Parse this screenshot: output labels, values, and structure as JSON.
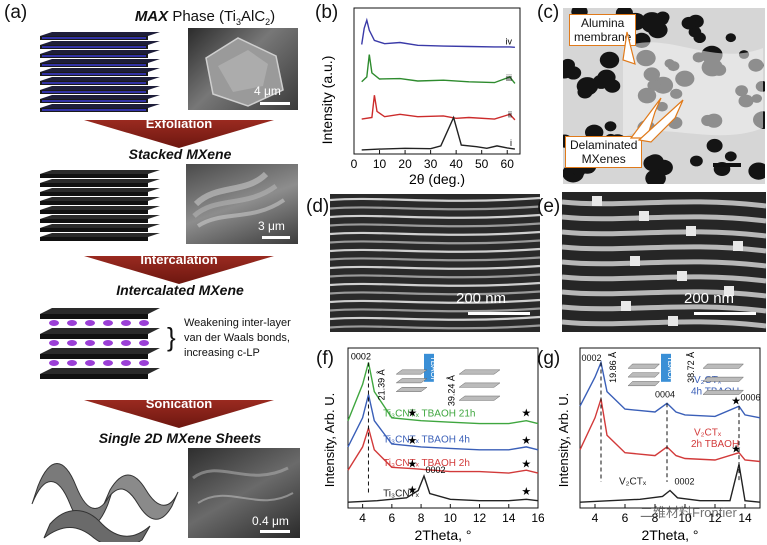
{
  "panels": {
    "a": {
      "label": "(a)",
      "max_title_bold": "MAX",
      "max_title_rest": " Phase (Ti",
      "max_title_sub3": "3",
      "max_title_alc": "AlC",
      "max_title_sub2": "2",
      "max_title_close": ")",
      "scale_max": "4 μm",
      "step1": "Exfoliation",
      "stacked_title": "Stacked MXene",
      "scale_stacked": "3 μm",
      "step2": "Intercalation",
      "intercalated_title": "Intercalated MXene",
      "note_line1": "Weakening inter-layer",
      "note_line2": "van der Waals bonds,",
      "note_line3": "increasing c-LP",
      "step3": "Sonication",
      "single_title": "Single 2D MXene Sheets",
      "scale_single": "0.4 μm"
    },
    "b": {
      "label": "(b)",
      "ylabel": "Intensity (a.u.)",
      "xlabel": "2θ (deg.)",
      "traces": [
        "iv",
        "iii",
        "ii",
        "i"
      ],
      "colors": [
        "#3a3aa8",
        "#2e8b2e",
        "#cc2b2b",
        "#222222"
      ]
    },
    "c": {
      "label": "(c)",
      "callout1_line1": "Alumina",
      "callout1_line2": "membrane",
      "callout2_line1": "Delaminated",
      "callout2_line2": "MXenes"
    },
    "d": {
      "label": "(d)",
      "scale": "200 nm"
    },
    "e": {
      "label": "(e)",
      "scale": "200 nm"
    },
    "f": {
      "label": "(f)",
      "ylabel": "Intensity, Arb. U.",
      "xlabel": "2Theta, °",
      "peak_top": "0002",
      "peak_bottom": "0002",
      "spacing1": "21.39 Å",
      "spacing2": "39.24 Å",
      "tbaoh": "TBAOH",
      "trace_labels": [
        "Ti₃CNTₓ TBAOH 21h",
        "Ti₃CNTₓ TBAOH 4h",
        "Ti₃CNTₓ TBAOH 2h",
        "Ti₃CNTₓ"
      ],
      "colors": [
        "#3fa63f",
        "#3a5fb8",
        "#d23a3a",
        "#222222"
      ]
    },
    "g": {
      "label": "(g)",
      "ylabel": "Intensity, Arb. U.",
      "xlabel": "2Theta, °",
      "peak_0002": "0002",
      "peak_0004": "0004",
      "peak_0006": "0006",
      "peak_bottom": "0002",
      "spacing1": "19.86 Å",
      "spacing2": "38.72 Å",
      "tbaoh": "TBAOH",
      "trace_4h_line1": "V₂CTₓ",
      "trace_4h_line2": "4h TBAOH",
      "trace_2h_line1": "V₂CTₓ",
      "trace_2h_line2": "2h TBAOH",
      "trace_base": "V₂CTₓ",
      "colors": [
        "#3a5fb8",
        "#d23a3a",
        "#222222"
      ],
      "watermark": "二维材料Frontier"
    }
  },
  "chart_data": [
    {
      "type": "line",
      "panel": "b",
      "xlabel": "2θ (deg.)",
      "ylabel": "Intensity (a.u.)",
      "xlim": [
        0,
        65
      ],
      "x_ticks": [
        0,
        10,
        20,
        30,
        40,
        50,
        60
      ],
      "series": [
        {
          "name": "iv",
          "x": [
            3,
            4,
            5,
            6,
            8,
            12,
            18,
            25,
            35,
            45,
            55,
            61,
            63
          ],
          "y": [
            20,
            60,
            80,
            55,
            30,
            22,
            25,
            18,
            16,
            15,
            14,
            14,
            13
          ]
        },
        {
          "name": "iii",
          "x": [
            3,
            5,
            6,
            7,
            10,
            18,
            25,
            35,
            45,
            55,
            61,
            63
          ],
          "y": [
            18,
            30,
            85,
            40,
            25,
            26,
            20,
            22,
            18,
            16,
            30,
            14
          ]
        },
        {
          "name": "ii",
          "x": [
            3,
            7,
            8,
            9,
            12,
            18,
            25,
            35,
            40,
            45,
            55,
            61,
            63
          ],
          "y": [
            16,
            20,
            75,
            35,
            22,
            28,
            22,
            24,
            18,
            20,
            16,
            28,
            14
          ]
        },
        {
          "name": "i",
          "x": [
            3,
            10,
            20,
            30,
            34,
            39,
            42,
            48,
            52,
            56,
            60,
            63
          ],
          "y": [
            10,
            12,
            14,
            13,
            20,
            90,
            22,
            18,
            14,
            20,
            15,
            12
          ]
        }
      ]
    },
    {
      "type": "line",
      "panel": "f",
      "xlabel": "2Theta, °",
      "ylabel": "Intensity, Arb. U.",
      "xlim": [
        3,
        16
      ],
      "x_ticks": [
        4,
        6,
        8,
        10,
        12,
        14,
        16
      ],
      "series": [
        {
          "name": "Ti₃CNTₓ TBAOH 21h",
          "x": [
            3,
            4,
            4.4,
            4.8,
            6,
            8,
            10,
            12,
            14,
            15.2,
            16
          ],
          "y": [
            60,
            85,
            100,
            80,
            62,
            60,
            59,
            58,
            58,
            60,
            58
          ]
        },
        {
          "name": "Ti₃CNTₓ TBAOH 4h",
          "x": [
            3,
            4,
            4.4,
            4.8,
            6,
            8,
            10,
            12,
            14,
            15.2,
            16
          ],
          "y": [
            42,
            62,
            78,
            60,
            44,
            42,
            41,
            40,
            40,
            42,
            40
          ]
        },
        {
          "name": "Ti₃CNTₓ TBAOH 2h",
          "x": [
            3,
            4,
            4.4,
            4.8,
            6,
            7.5,
            10,
            12,
            14,
            15.2,
            16
          ],
          "y": [
            26,
            42,
            55,
            40,
            28,
            27,
            25,
            25,
            24,
            26,
            24
          ]
        },
        {
          "name": "Ti₃CNTₓ",
          "x": [
            3,
            5,
            7,
            7.8,
            8.2,
            8.6,
            10,
            12,
            14,
            15.2,
            16
          ],
          "y": [
            4,
            5,
            7,
            12,
            22,
            10,
            6,
            5,
            5,
            6,
            5
          ]
        }
      ]
    },
    {
      "type": "line",
      "panel": "g",
      "xlabel": "2Theta, °",
      "ylabel": "Intensity, Arb. U.",
      "xlim": [
        3,
        15
      ],
      "x_ticks": [
        4,
        6,
        8,
        10,
        12,
        14
      ],
      "series": [
        {
          "name": "V₂CTₓ 4h TBAOH",
          "x": [
            3,
            4,
            4.4,
            4.8,
            6,
            8,
            8.8,
            9.4,
            10,
            12,
            13.6,
            14,
            15
          ],
          "y": [
            70,
            90,
            100,
            80,
            68,
            66,
            72,
            66,
            64,
            63,
            70,
            64,
            62
          ]
        },
        {
          "name": "V₂CTₓ 2h TBAOH",
          "x": [
            3,
            4,
            4.4,
            4.8,
            6,
            8,
            8.8,
            9.4,
            10,
            12,
            13.6,
            14,
            15
          ],
          "y": [
            40,
            62,
            75,
            50,
            38,
            36,
            42,
            36,
            34,
            33,
            38,
            33,
            32
          ]
        },
        {
          "name": "V₂CTₓ",
          "x": [
            3,
            5,
            7,
            8.5,
            9,
            9.5,
            11,
            13,
            13.6,
            14,
            15
          ],
          "y": [
            4,
            5,
            6,
            8,
            12,
            7,
            5,
            5,
            30,
            5,
            4
          ]
        }
      ]
    }
  ]
}
